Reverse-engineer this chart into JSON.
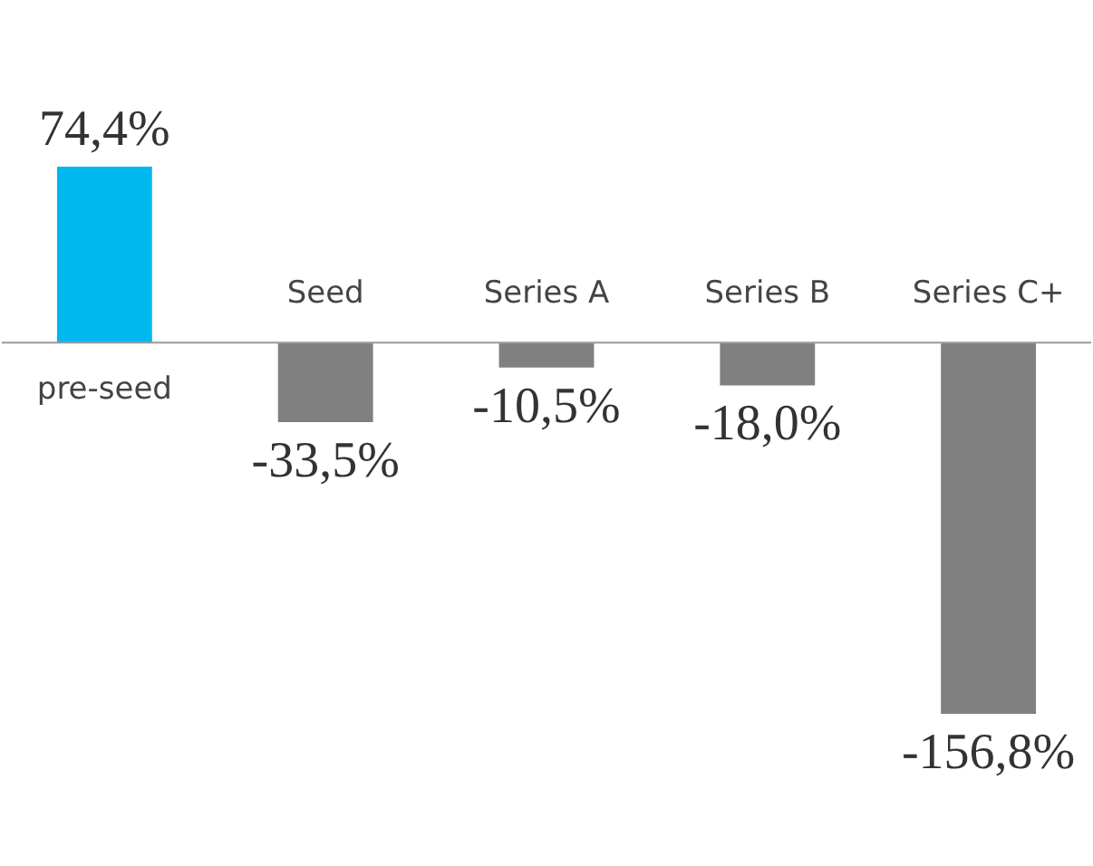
{
  "chart_data": {
    "type": "bar",
    "categories": [
      "pre-seed",
      "Seed",
      "Series A",
      "Series B",
      "Series C+"
    ],
    "values": [
      74.4,
      -33.5,
      -10.5,
      -18.0,
      -156.8
    ],
    "colors": [
      "#00b8f0",
      "#808080",
      "#808080",
      "#808080",
      "#808080"
    ],
    "value_labels": [
      "74,4%",
      "-33,5%",
      "-10,5%",
      "-18,0%",
      "-156,8%"
    ]
  }
}
